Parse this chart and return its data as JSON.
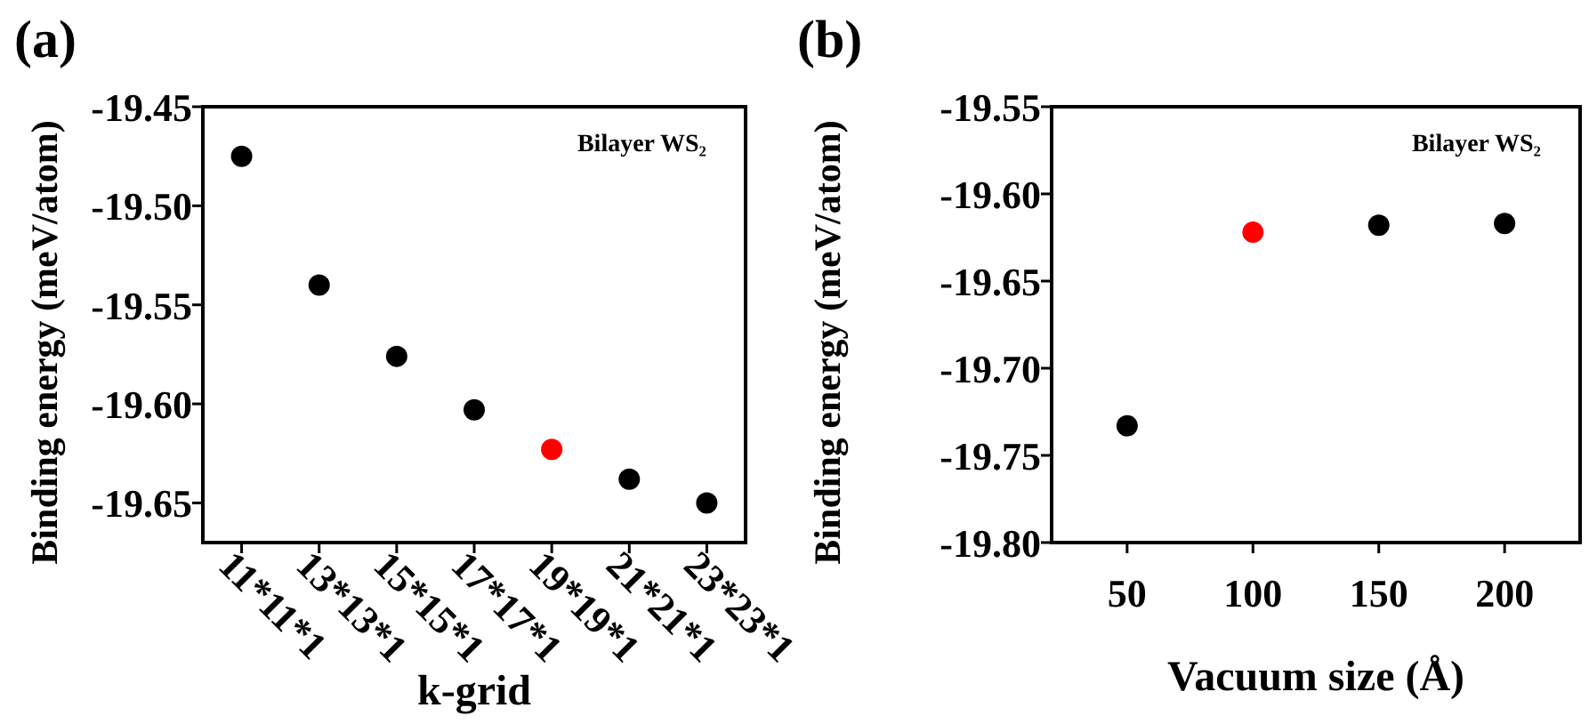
{
  "chart_data": [
    {
      "type": "scatter",
      "title": "(a)",
      "xlabel": "k-grid",
      "ylabel": "Binding energy (meV/atom)",
      "categories": [
        "11*11*1",
        "13*13*1",
        "15*15*1",
        "17*17*1",
        "19*19*1",
        "21*21*1",
        "23*23*1"
      ],
      "series": [
        {
          "values": [
            -19.475,
            -19.54,
            -19.576,
            -19.603,
            -19.623,
            -19.638,
            -19.65
          ],
          "colors": [
            "#000000",
            "#000000",
            "#000000",
            "#000000",
            "#ff0000",
            "#000000",
            "#000000"
          ]
        }
      ],
      "ylim": [
        -19.67,
        -19.45
      ],
      "yticks": [
        -19.45,
        {
          "value": -19.5,
          "label": "-19.50"
        },
        -19.55,
        {
          "value": -19.6,
          "label": "-19.60"
        },
        -19.65
      ],
      "marker": "circle",
      "annotations": [
        "Bilayer WS₂"
      ]
    },
    {
      "type": "scatter",
      "title": "(b)",
      "xlabel": "Vacuum size (Å)",
      "ylabel": "Binding energy (meV/atom)",
      "x": [
        50,
        100,
        150,
        200
      ],
      "series": [
        {
          "values": [
            -19.733,
            -19.622,
            -19.618,
            -19.617
          ],
          "colors": [
            "#000000",
            "#ff0000",
            "#000000",
            "#000000"
          ]
        }
      ],
      "xlim": [
        20,
        230
      ],
      "xticks": [
        50,
        100,
        150,
        200
      ],
      "ylim": [
        -19.8,
        -19.55
      ],
      "yticks": [
        -19.55,
        {
          "value": -19.6,
          "label": "-19.60"
        },
        -19.65,
        {
          "value": -19.7,
          "label": "-19.70"
        },
        -19.75,
        {
          "value": -19.8,
          "label": "-19.80"
        }
      ],
      "marker": "circle",
      "annotations": [
        "Bilayer WS₂"
      ]
    }
  ]
}
